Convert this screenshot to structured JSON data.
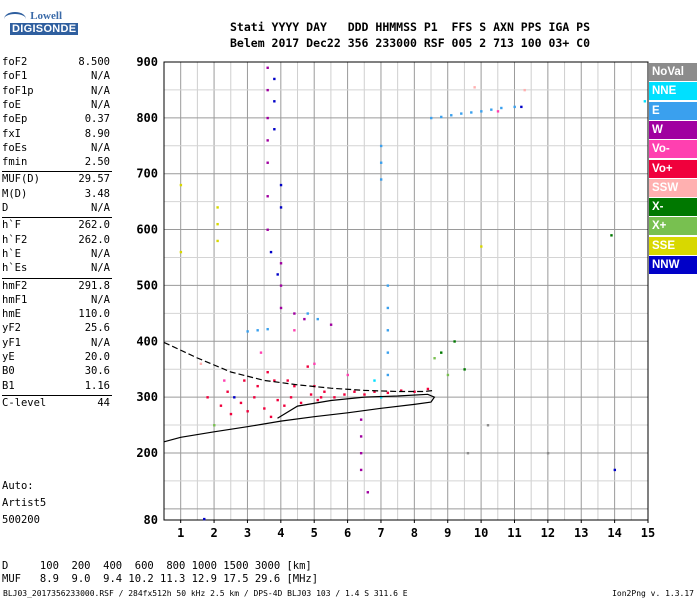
{
  "logo": {
    "line1": "Lowell",
    "line2": "DIGISONDE"
  },
  "header": {
    "line1": "Stati YYYY DAY   DDD HHMMSS P1  FFS S AXN PPS IGA PS",
    "line2": "Belem 2017 Dec22 356 233000 RSF 005 2 713 100 03+ C0"
  },
  "params_group1": [
    {
      "key": "foF2",
      "value": "8.500"
    },
    {
      "key": "foF1",
      "value": "N/A"
    },
    {
      "key": "foF1p",
      "value": "N/A"
    },
    {
      "key": "foE",
      "value": "N/A"
    },
    {
      "key": "foEp",
      "value": "0.37"
    },
    {
      "key": "fxI",
      "value": "8.90"
    },
    {
      "key": "foEs",
      "value": "N/A"
    },
    {
      "key": "fmin",
      "value": "2.50"
    }
  ],
  "params_group2": [
    {
      "key": "MUF(D)",
      "value": "29.57"
    },
    {
      "key": "M(D)",
      "value": "3.48"
    },
    {
      "key": "D",
      "value": "N/A"
    }
  ],
  "params_group3": [
    {
      "key": "h`F",
      "value": "262.0"
    },
    {
      "key": "h`F2",
      "value": "262.0"
    },
    {
      "key": "h`E",
      "value": "N/A"
    },
    {
      "key": "h`Es",
      "value": "N/A"
    }
  ],
  "params_group4": [
    {
      "key": "hmF2",
      "value": "291.8"
    },
    {
      "key": "hmF1",
      "value": "N/A"
    },
    {
      "key": "hmE",
      "value": "110.0"
    },
    {
      "key": "yF2",
      "value": "25.6"
    },
    {
      "key": "yF1",
      "value": "N/A"
    },
    {
      "key": "yE",
      "value": "20.0"
    },
    {
      "key": "B0",
      "value": "30.6"
    },
    {
      "key": "B1",
      "value": "1.16"
    }
  ],
  "params_group5": [
    {
      "key": "C-level",
      "value": "44"
    }
  ],
  "auto": {
    "line1": "Auto:",
    "line2": "Artist5",
    "line3": "500200"
  },
  "legend": [
    {
      "label": "NoVal",
      "color": "#8c8c8c"
    },
    {
      "label": "NNE",
      "color": "#00e0ff"
    },
    {
      "label": "E",
      "color": "#3aa0ee"
    },
    {
      "label": "W",
      "color": "#a000a0"
    },
    {
      "label": "Vo-",
      "color": "#ff40b0"
    },
    {
      "label": "Vo+",
      "color": "#f0003c"
    },
    {
      "label": "SSW",
      "color": "#ffb0b0"
    },
    {
      "label": "X-",
      "color": "#007800"
    },
    {
      "label": "X+",
      "color": "#78c050"
    },
    {
      "label": "SSE",
      "color": "#d8d800"
    },
    {
      "label": "NNW",
      "color": "#0000c8"
    }
  ],
  "bottom": {
    "d_row": "D     100  200  400  600  800 1000 1500 3000 [km]",
    "muf_row": "MUF   8.9  9.0  9.4 10.2 11.3 12.9 17.5 29.6 [MHz]"
  },
  "footer": {
    "left": "BLJ03_2017356233000.RSF / 284fx512h 50 kHz 2.5 km / DPS-4D BLJ03 103 / 1.4 S 311.6 E",
    "right": "Ion2Png v. 1.3.17"
  },
  "chart_data": {
    "type": "scatter",
    "xlim": [
      0.5,
      15
    ],
    "ylim": [
      80,
      900
    ],
    "x_ticks": [
      "1",
      "2",
      "3",
      "4",
      "5",
      "6",
      "7",
      "8",
      "9",
      "10",
      "11",
      "12",
      "13",
      "14",
      "15"
    ],
    "y_ticks": [
      "80",
      "200",
      "300",
      "400",
      "500",
      "600",
      "700",
      "800",
      "900"
    ],
    "grid": true,
    "series": [
      {
        "name": "Vo+",
        "color": "#f0003c",
        "points": [
          [
            1.8,
            300
          ],
          [
            2.2,
            285
          ],
          [
            2.5,
            270
          ],
          [
            2.8,
            290
          ],
          [
            3.0,
            275
          ],
          [
            3.2,
            300
          ],
          [
            3.5,
            280
          ],
          [
            3.7,
            265
          ],
          [
            3.9,
            295
          ],
          [
            4.1,
            285
          ],
          [
            4.3,
            300
          ],
          [
            4.6,
            290
          ],
          [
            4.9,
            305
          ],
          [
            5.1,
            295
          ],
          [
            5.3,
            310
          ],
          [
            5.6,
            300
          ],
          [
            5.9,
            305
          ],
          [
            6.2,
            310
          ],
          [
            6.5,
            305
          ],
          [
            6.8,
            310
          ],
          [
            7.2,
            308
          ],
          [
            7.6,
            312
          ],
          [
            8.0,
            310
          ],
          [
            8.4,
            315
          ],
          [
            2.4,
            310
          ],
          [
            3.3,
            320
          ],
          [
            4.4,
            320
          ],
          [
            5.0,
            320
          ],
          [
            3.6,
            345
          ],
          [
            4.8,
            355
          ],
          [
            5.2,
            300
          ],
          [
            2.9,
            330
          ],
          [
            3.8,
            330
          ],
          [
            4.2,
            330
          ]
        ]
      },
      {
        "name": "E",
        "color": "#3aa0ee",
        "points": [
          [
            8.5,
            800
          ],
          [
            8.8,
            802
          ],
          [
            9.1,
            805
          ],
          [
            9.4,
            808
          ],
          [
            9.7,
            810
          ],
          [
            10.0,
            812
          ],
          [
            10.3,
            815
          ],
          [
            10.6,
            818
          ],
          [
            11.0,
            820
          ],
          [
            3.0,
            418
          ],
          [
            3.3,
            420
          ],
          [
            3.6,
            422
          ],
          [
            7.0,
            750
          ],
          [
            7.0,
            720
          ],
          [
            7.0,
            690
          ],
          [
            7.2,
            500
          ],
          [
            7.2,
            460
          ],
          [
            7.2,
            420
          ],
          [
            7.2,
            380
          ],
          [
            7.2,
            340
          ],
          [
            4.8,
            450
          ],
          [
            5.1,
            440
          ]
        ]
      },
      {
        "name": "W",
        "color": "#a000a0",
        "points": [
          [
            3.6,
            890
          ],
          [
            3.6,
            850
          ],
          [
            3.6,
            800
          ],
          [
            3.6,
            760
          ],
          [
            3.6,
            720
          ],
          [
            3.6,
            660
          ],
          [
            3.6,
            600
          ],
          [
            4.0,
            540
          ],
          [
            4.0,
            500
          ],
          [
            4.0,
            460
          ],
          [
            6.4,
            260
          ],
          [
            6.4,
            230
          ],
          [
            6.4,
            200
          ],
          [
            6.4,
            170
          ],
          [
            6.6,
            130
          ],
          [
            4.4,
            450
          ],
          [
            4.7,
            440
          ],
          [
            5.5,
            430
          ]
        ]
      },
      {
        "name": "NNW",
        "color": "#0000c8",
        "points": [
          [
            3.8,
            870
          ],
          [
            3.8,
            830
          ],
          [
            3.8,
            780
          ],
          [
            4.0,
            680
          ],
          [
            4.0,
            640
          ],
          [
            3.7,
            560
          ],
          [
            3.9,
            520
          ],
          [
            2.6,
            300
          ],
          [
            11.2,
            820
          ],
          [
            14.0,
            170
          ],
          [
            1.7,
            82
          ]
        ]
      },
      {
        "name": "Vo-",
        "color": "#ff40b0",
        "points": [
          [
            3.4,
            380
          ],
          [
            4.4,
            420
          ],
          [
            5.0,
            360
          ],
          [
            6.0,
            340
          ],
          [
            10.5,
            812
          ],
          [
            2.3,
            330
          ]
        ]
      },
      {
        "name": "X-",
        "color": "#007800",
        "points": [
          [
            8.8,
            380
          ],
          [
            9.2,
            400
          ],
          [
            9.5,
            350
          ],
          [
            13.9,
            590
          ]
        ]
      },
      {
        "name": "X+",
        "color": "#78c050",
        "points": [
          [
            8.6,
            370
          ],
          [
            9.0,
            340
          ],
          [
            2.0,
            250
          ]
        ]
      },
      {
        "name": "SSE",
        "color": "#d8d800",
        "points": [
          [
            2.1,
            640
          ],
          [
            2.1,
            610
          ],
          [
            2.1,
            580
          ],
          [
            10.0,
            570
          ],
          [
            1.0,
            680
          ],
          [
            1.0,
            560
          ]
        ]
      },
      {
        "name": "SSW",
        "color": "#ffb0b0",
        "points": [
          [
            9.8,
            855
          ],
          [
            11.3,
            850
          ],
          [
            1.6,
            360
          ]
        ]
      },
      {
        "name": "NNE",
        "color": "#00e0ff",
        "points": [
          [
            14.9,
            830
          ],
          [
            7.0,
            300
          ],
          [
            6.8,
            330
          ]
        ]
      },
      {
        "name": "NoVal",
        "color": "#8c8c8c",
        "points": [
          [
            9.6,
            200
          ],
          [
            10.2,
            250
          ],
          [
            12.0,
            200
          ]
        ]
      }
    ],
    "curves": [
      {
        "name": "dashed",
        "style": "dashed",
        "points": [
          [
            0.5,
            398
          ],
          [
            1.5,
            370
          ],
          [
            2.5,
            345
          ],
          [
            3.5,
            330
          ],
          [
            4.5,
            322
          ],
          [
            5.5,
            316
          ],
          [
            6.5,
            312
          ],
          [
            7.5,
            310
          ],
          [
            8.3,
            310
          ],
          [
            8.6,
            312
          ]
        ]
      },
      {
        "name": "solid",
        "style": "solid",
        "points": [
          [
            0.5,
            220
          ],
          [
            1.0,
            228
          ],
          [
            2.0,
            238
          ],
          [
            3.0,
            247
          ],
          [
            4.0,
            257
          ],
          [
            5.0,
            265
          ],
          [
            6.0,
            272
          ],
          [
            7.0,
            280
          ],
          [
            8.0,
            287
          ],
          [
            8.5,
            291
          ],
          [
            8.6,
            300
          ],
          [
            8.4,
            305
          ],
          [
            7.5,
            302
          ],
          [
            6.5,
            300
          ],
          [
            5.5,
            294
          ],
          [
            4.5,
            284
          ],
          [
            3.9,
            262
          ]
        ]
      }
    ]
  }
}
